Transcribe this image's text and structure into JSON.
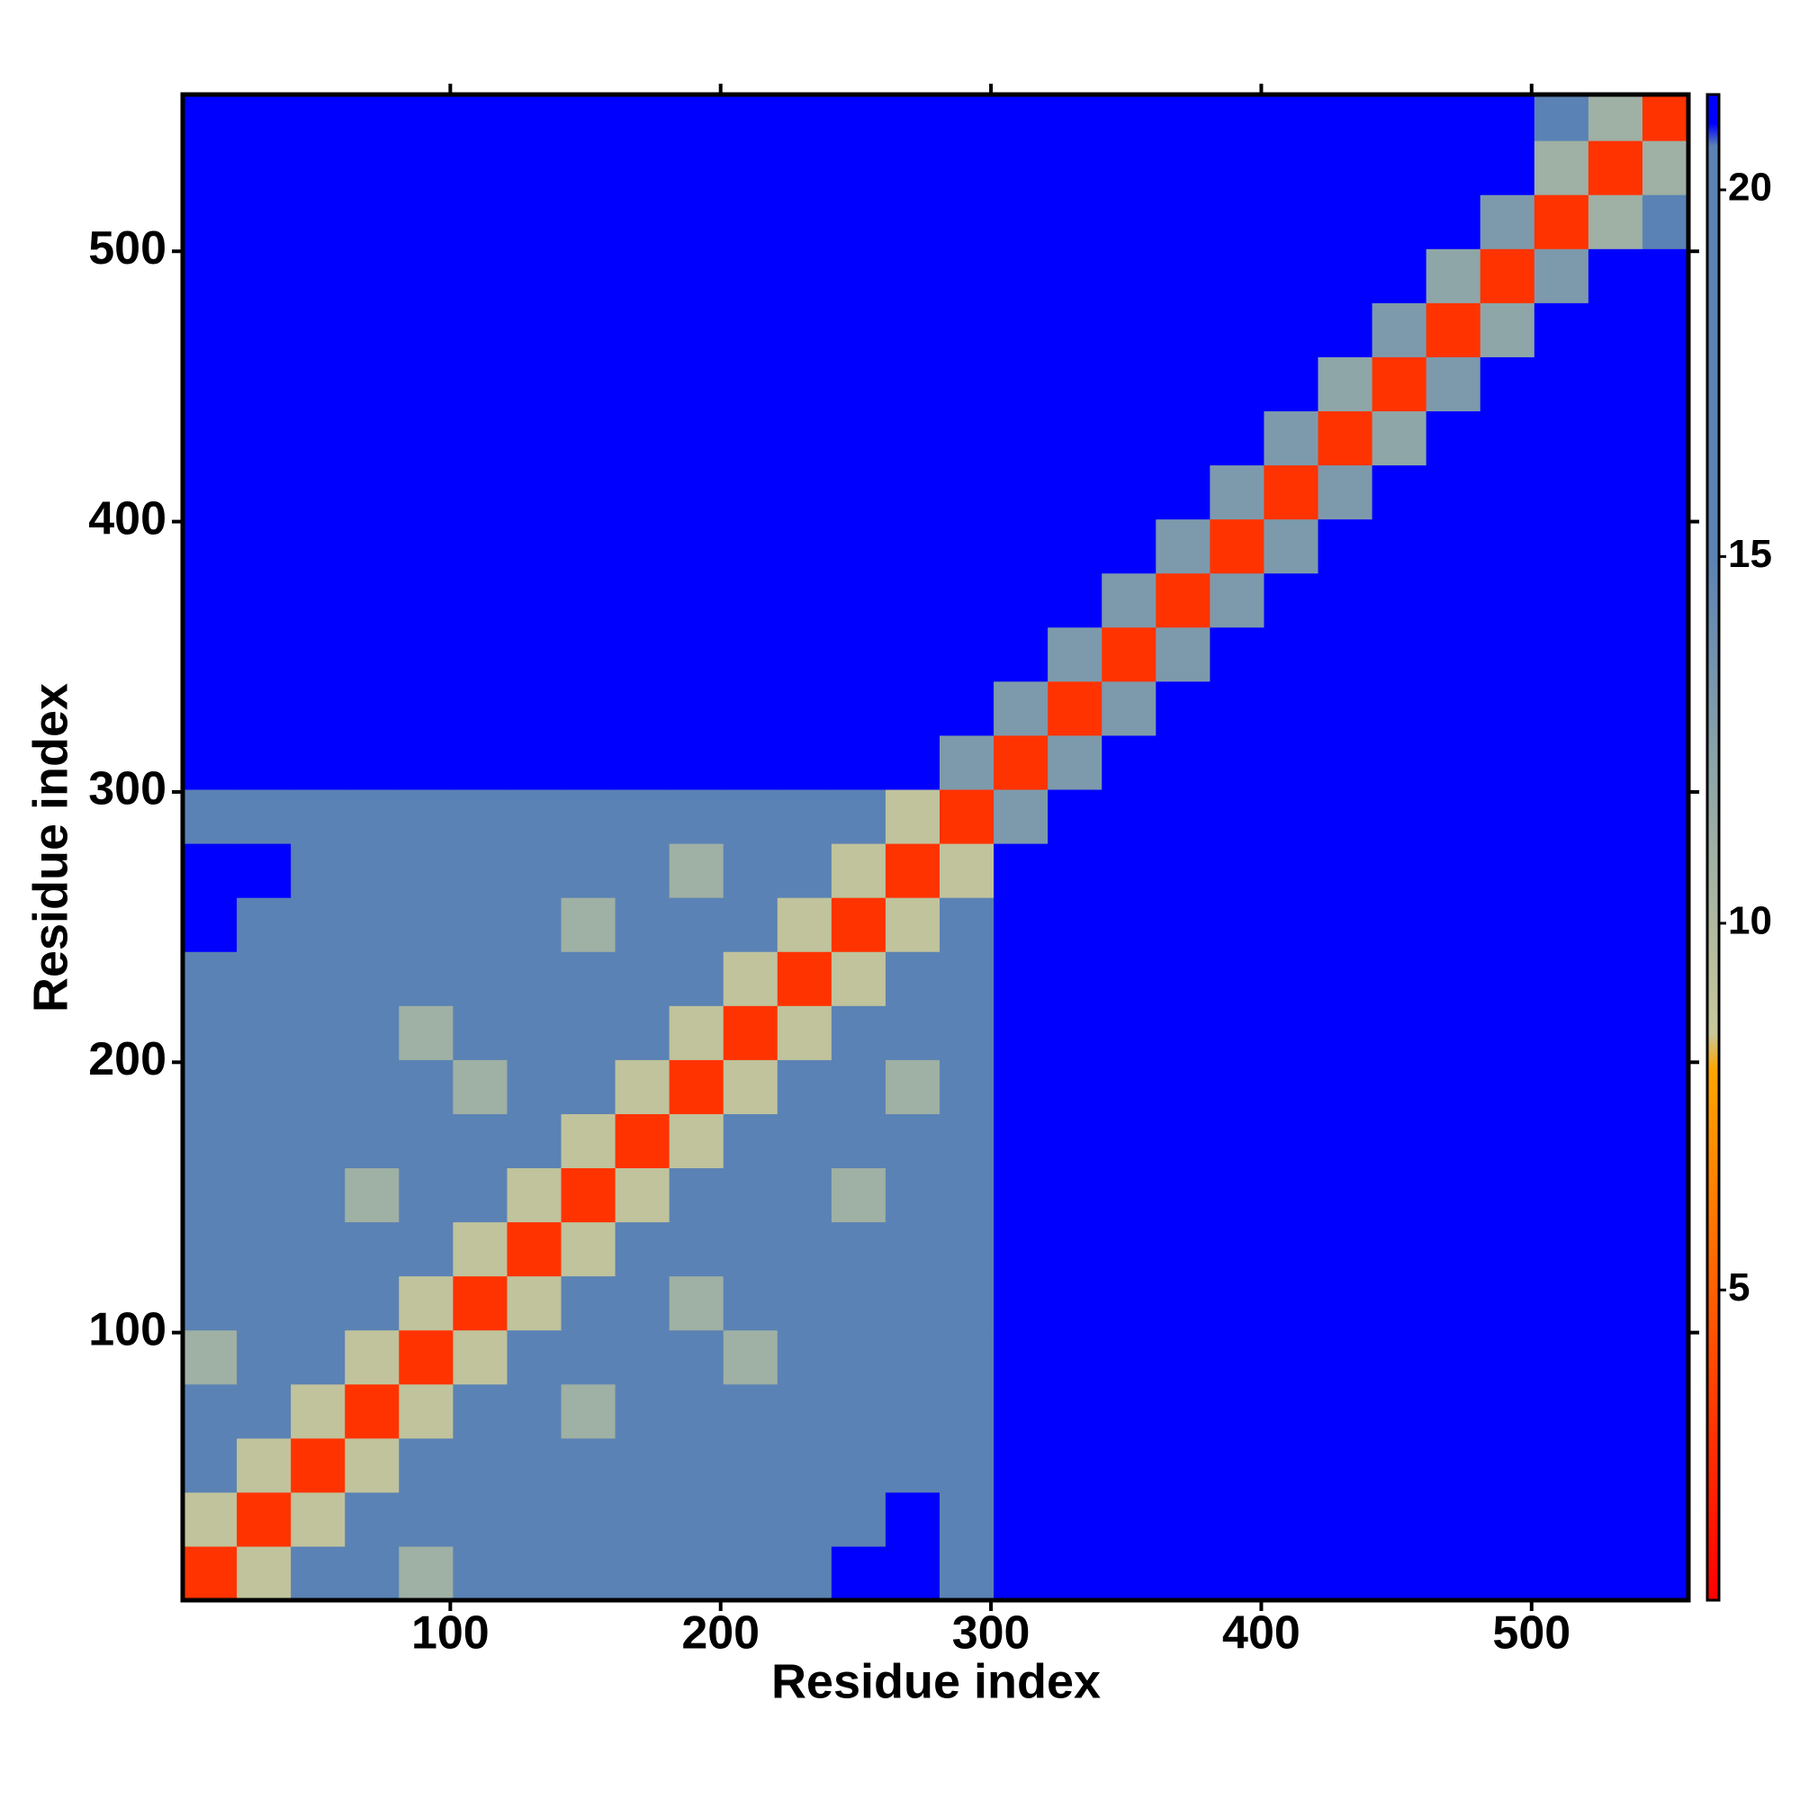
{
  "chart_data": {
    "type": "heatmap",
    "xlabel": "Residue index",
    "ylabel": "Residue index",
    "xlim": [
      1,
      558
    ],
    "ylim": [
      1,
      558
    ],
    "xticks": [
      100,
      200,
      300,
      400,
      500
    ],
    "yticks": [
      100,
      200,
      300,
      400,
      500
    ],
    "x_edges": [
      1,
      21,
      41,
      61,
      81,
      101,
      121,
      141,
      161,
      181,
      201,
      221,
      241,
      261,
      281,
      301,
      321,
      341,
      361,
      381,
      401,
      421,
      441,
      461,
      481,
      501,
      521,
      541,
      558
    ],
    "y_edges": [
      1,
      21,
      41,
      61,
      81,
      101,
      121,
      141,
      161,
      181,
      201,
      221,
      241,
      261,
      281,
      301,
      321,
      341,
      361,
      381,
      401,
      421,
      441,
      461,
      481,
      501,
      521,
      541,
      558
    ],
    "z": [
      [
        3,
        9,
        16,
        16,
        11,
        16,
        16,
        16,
        16,
        16,
        16,
        16,
        21,
        21,
        16,
        21,
        21,
        21,
        21,
        21,
        21,
        21,
        21,
        21,
        21,
        21,
        21,
        21
      ],
      [
        9,
        3,
        9,
        16,
        16,
        16,
        16,
        16,
        16,
        16,
        16,
        16,
        16,
        21,
        16,
        21,
        21,
        21,
        21,
        21,
        21,
        21,
        21,
        21,
        21,
        21,
        21,
        21
      ],
      [
        16,
        9,
        3,
        9,
        16,
        16,
        16,
        16,
        16,
        16,
        16,
        16,
        16,
        16,
        16,
        21,
        21,
        21,
        21,
        21,
        21,
        21,
        21,
        21,
        21,
        21,
        21,
        21
      ],
      [
        16,
        16,
        9,
        3,
        9,
        16,
        16,
        11,
        16,
        16,
        16,
        16,
        16,
        16,
        16,
        21,
        21,
        21,
        21,
        21,
        21,
        21,
        21,
        21,
        21,
        21,
        21,
        21
      ],
      [
        11,
        16,
        16,
        9,
        3,
        9,
        16,
        16,
        16,
        16,
        11,
        16,
        16,
        16,
        16,
        21,
        21,
        21,
        21,
        21,
        21,
        21,
        21,
        21,
        21,
        21,
        21,
        21
      ],
      [
        16,
        16,
        16,
        16,
        9,
        3,
        9,
        16,
        16,
        11,
        16,
        16,
        16,
        16,
        16,
        21,
        21,
        21,
        21,
        21,
        21,
        21,
        21,
        21,
        21,
        21,
        21,
        21
      ],
      [
        16,
        16,
        16,
        16,
        16,
        9,
        3,
        9,
        16,
        16,
        16,
        16,
        16,
        16,
        16,
        21,
        21,
        21,
        21,
        21,
        21,
        21,
        21,
        21,
        21,
        21,
        21,
        21
      ],
      [
        16,
        16,
        16,
        11,
        16,
        16,
        9,
        3,
        9,
        16,
        16,
        16,
        11,
        16,
        16,
        21,
        21,
        21,
        21,
        21,
        21,
        21,
        21,
        21,
        21,
        21,
        21,
        21
      ],
      [
        16,
        16,
        16,
        16,
        16,
        16,
        16,
        9,
        3,
        9,
        16,
        16,
        16,
        16,
        16,
        21,
        21,
        21,
        21,
        21,
        21,
        21,
        21,
        21,
        21,
        21,
        21,
        21
      ],
      [
        16,
        16,
        16,
        16,
        16,
        11,
        16,
        16,
        9,
        3,
        9,
        16,
        16,
        11,
        16,
        21,
        21,
        21,
        21,
        21,
        21,
        21,
        21,
        21,
        21,
        21,
        21,
        21
      ],
      [
        16,
        16,
        16,
        16,
        11,
        16,
        16,
        16,
        16,
        9,
        3,
        9,
        16,
        16,
        16,
        21,
        21,
        21,
        21,
        21,
        21,
        21,
        21,
        21,
        21,
        21,
        21,
        21
      ],
      [
        16,
        16,
        16,
        16,
        16,
        16,
        16,
        16,
        16,
        16,
        9,
        3,
        9,
        16,
        16,
        21,
        21,
        21,
        21,
        21,
        21,
        21,
        21,
        21,
        21,
        21,
        21,
        21
      ],
      [
        21,
        16,
        16,
        16,
        16,
        16,
        16,
        11,
        16,
        16,
        16,
        9,
        3,
        9,
        16,
        21,
        21,
        21,
        21,
        21,
        21,
        21,
        21,
        21,
        21,
        21,
        21,
        21
      ],
      [
        21,
        21,
        16,
        16,
        16,
        16,
        16,
        16,
        16,
        11,
        16,
        16,
        9,
        3,
        9,
        21,
        21,
        21,
        21,
        21,
        21,
        21,
        21,
        21,
        21,
        21,
        21,
        21
      ],
      [
        16,
        16,
        16,
        16,
        16,
        16,
        16,
        16,
        16,
        16,
        16,
        16,
        16,
        9,
        3,
        13,
        21,
        21,
        21,
        21,
        21,
        21,
        21,
        21,
        21,
        21,
        21,
        21
      ],
      [
        21,
        21,
        21,
        21,
        21,
        21,
        21,
        21,
        21,
        21,
        21,
        21,
        21,
        21,
        13,
        3,
        13,
        21,
        21,
        21,
        21,
        21,
        21,
        21,
        21,
        21,
        21,
        21
      ],
      [
        21,
        21,
        21,
        21,
        21,
        21,
        21,
        21,
        21,
        21,
        21,
        21,
        21,
        21,
        21,
        13,
        3,
        13,
        21,
        21,
        21,
        21,
        21,
        21,
        21,
        21,
        21,
        21
      ],
      [
        21,
        21,
        21,
        21,
        21,
        21,
        21,
        21,
        21,
        21,
        21,
        21,
        21,
        21,
        21,
        21,
        13,
        3,
        13,
        21,
        21,
        21,
        21,
        21,
        21,
        21,
        21,
        21
      ],
      [
        21,
        21,
        21,
        21,
        21,
        21,
        21,
        21,
        21,
        21,
        21,
        21,
        21,
        21,
        21,
        21,
        21,
        13,
        3,
        13,
        21,
        21,
        21,
        21,
        21,
        21,
        21,
        21
      ],
      [
        21,
        21,
        21,
        21,
        21,
        21,
        21,
        21,
        21,
        21,
        21,
        21,
        21,
        21,
        21,
        21,
        21,
        21,
        13,
        3,
        13,
        21,
        21,
        21,
        21,
        21,
        21,
        21
      ],
      [
        21,
        21,
        21,
        21,
        21,
        21,
        21,
        21,
        21,
        21,
        21,
        21,
        21,
        21,
        21,
        21,
        21,
        21,
        21,
        13,
        3,
        13,
        21,
        21,
        21,
        21,
        21,
        21
      ],
      [
        21,
        21,
        21,
        21,
        21,
        21,
        21,
        21,
        21,
        21,
        21,
        21,
        21,
        21,
        21,
        21,
        21,
        21,
        21,
        21,
        13,
        3,
        12,
        21,
        21,
        21,
        21,
        21
      ],
      [
        21,
        21,
        21,
        21,
        21,
        21,
        21,
        21,
        21,
        21,
        21,
        21,
        21,
        21,
        21,
        21,
        21,
        21,
        21,
        21,
        21,
        12,
        3,
        13,
        21,
        21,
        21,
        21
      ],
      [
        21,
        21,
        21,
        21,
        21,
        21,
        21,
        21,
        21,
        21,
        21,
        21,
        21,
        21,
        21,
        21,
        21,
        21,
        21,
        21,
        21,
        21,
        13,
        3,
        12,
        21,
        21,
        21
      ],
      [
        21,
        21,
        21,
        21,
        21,
        21,
        21,
        21,
        21,
        21,
        21,
        21,
        21,
        21,
        21,
        21,
        21,
        21,
        21,
        21,
        21,
        21,
        21,
        12,
        3,
        13,
        21,
        21
      ],
      [
        21,
        21,
        21,
        21,
        21,
        21,
        21,
        21,
        21,
        21,
        21,
        21,
        21,
        21,
        21,
        21,
        21,
        21,
        21,
        21,
        21,
        21,
        21,
        21,
        13,
        3,
        11,
        15
      ],
      [
        21,
        21,
        21,
        21,
        21,
        21,
        21,
        21,
        21,
        21,
        21,
        21,
        21,
        21,
        21,
        21,
        21,
        21,
        21,
        21,
        21,
        21,
        21,
        21,
        21,
        11,
        3,
        11
      ],
      [
        21,
        21,
        21,
        21,
        21,
        21,
        21,
        21,
        21,
        21,
        21,
        21,
        21,
        21,
        21,
        21,
        21,
        21,
        21,
        21,
        21,
        21,
        21,
        21,
        21,
        15,
        11,
        3
      ]
    ],
    "zlim": [
      0.77,
      21.3
    ],
    "zticks": [
      5,
      10,
      15,
      20
    ],
    "colorscale": [
      [
        0.77,
        "#ff0000"
      ],
      [
        5,
        "#ff6000"
      ],
      [
        8,
        "#ffa500"
      ],
      [
        8.5,
        "#c8c89a"
      ],
      [
        12,
        "#8ea6a8"
      ],
      [
        15,
        "#5b82b4"
      ],
      [
        20.6,
        "#5b82b4"
      ],
      [
        20.9,
        "#0000ff"
      ]
    ]
  }
}
